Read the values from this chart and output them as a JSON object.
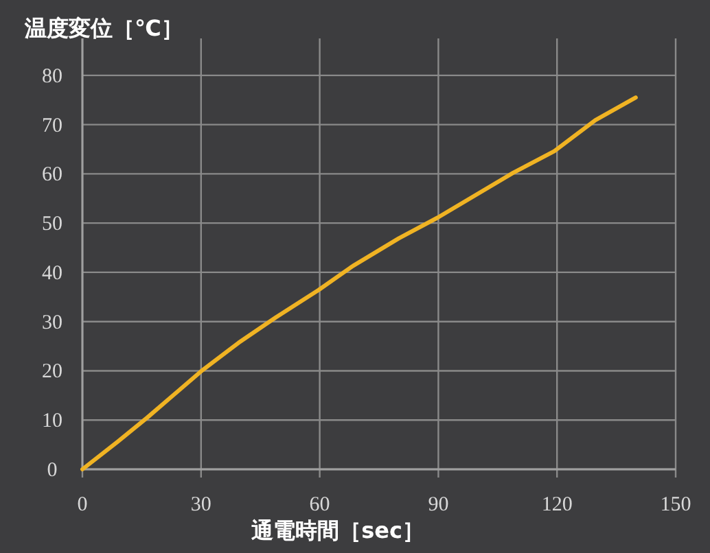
{
  "chart_data": {
    "type": "line",
    "ylabel": "温度変位［℃］",
    "xlabel": "通電時間［sec］",
    "series": [
      {
        "color": "#f0b323",
        "x": [
          0,
          8.9,
          16.4,
          30,
          39.5,
          48.8,
          59.7,
          68.4,
          80,
          89.8,
          108.9,
          119.3,
          129.7,
          139.9
        ],
        "values": [
          0,
          5.6,
          10.5,
          19.9,
          25.7,
          30.8,
          36.4,
          41.3,
          46.9,
          51.1,
          60.2,
          64.6,
          70.9,
          75.5
        ]
      }
    ],
    "xlim": [
      0,
      150
    ],
    "xticks": [
      0,
      30,
      60,
      90,
      120,
      150
    ],
    "ylim": [
      0,
      87.5
    ],
    "yticks": [
      0,
      10,
      20,
      30,
      40,
      50,
      60,
      70,
      80
    ],
    "grid": true,
    "marker": "none",
    "line_style": "solid"
  }
}
